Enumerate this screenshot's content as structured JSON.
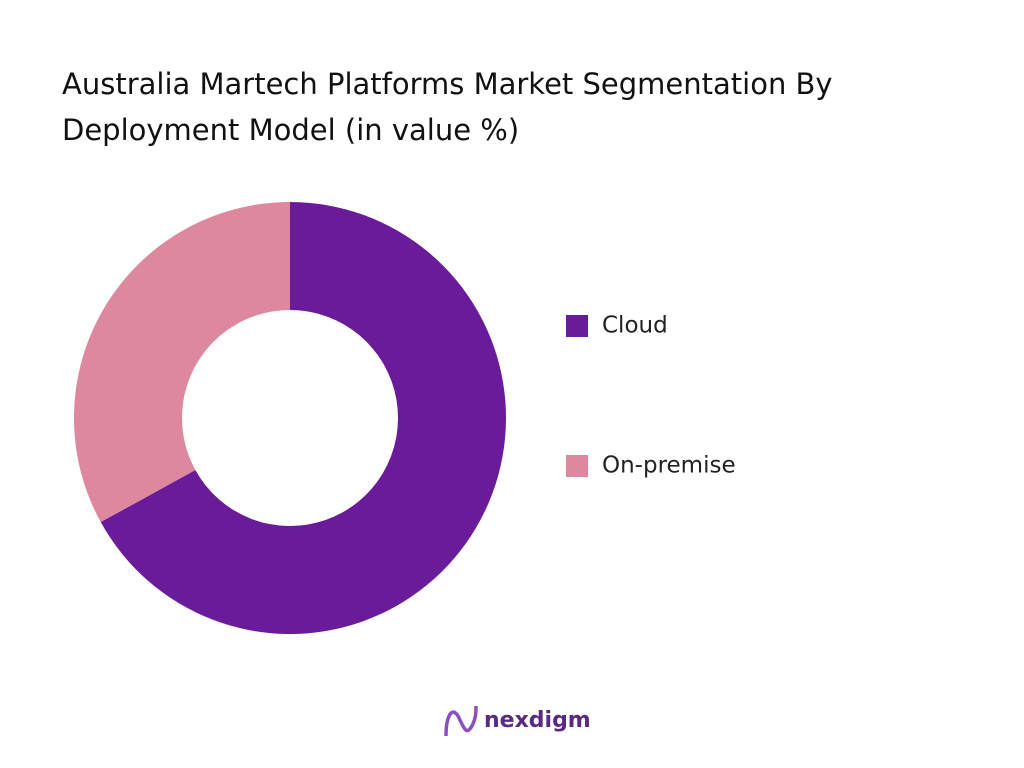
{
  "chart_data": {
    "type": "donut",
    "title": "Australia Martech Platforms Market Segmentation By Deployment Model (in value %)",
    "categories": [
      "Cloud",
      "On-premise"
    ],
    "values": [
      67,
      33
    ],
    "colors": [
      "#6a1b9a",
      "#de889f"
    ],
    "legend": "right"
  },
  "footer": {
    "brand": "nexdigm"
  }
}
